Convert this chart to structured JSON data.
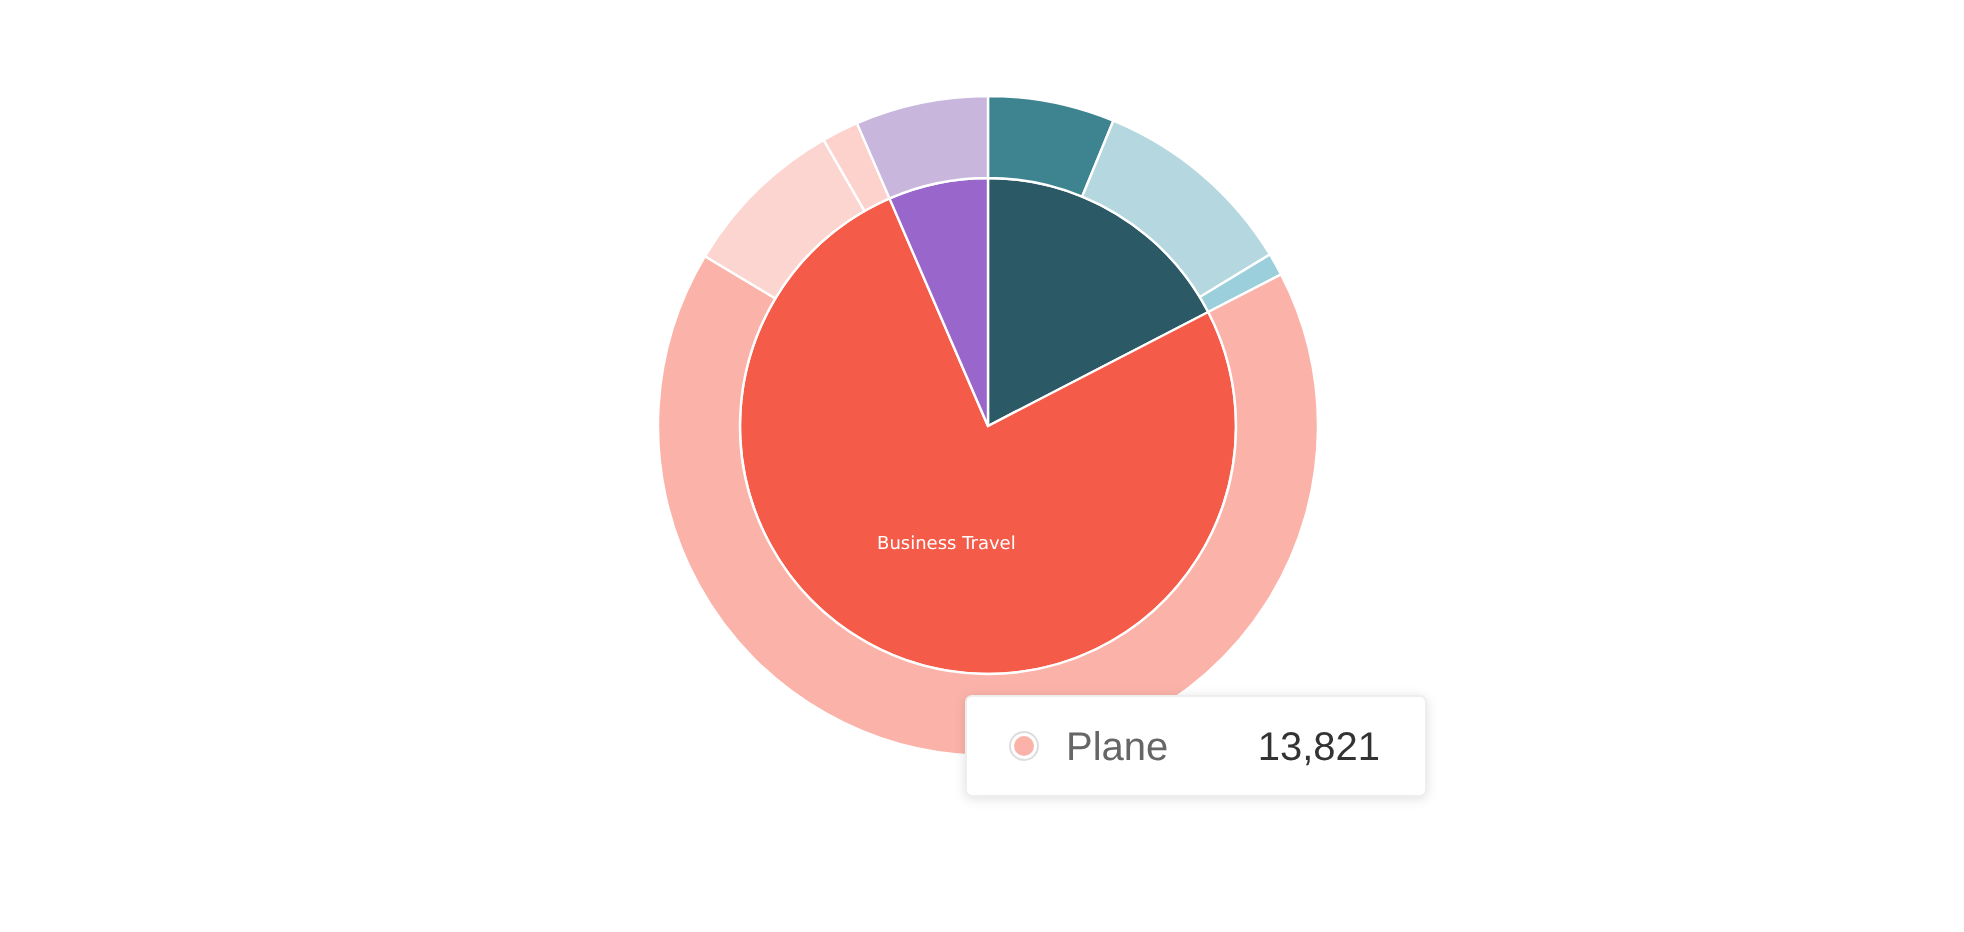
{
  "chart_data": [
    {
      "type": "pie",
      "categories": [
        null,
        "Business Travel",
        null
      ],
      "values": [
        17.4,
        76.1,
        6.5
      ],
      "colors": [
        "#2b5a66",
        "#f45b49",
        "#9966cc"
      ]
    },
    {
      "type": "donut",
      "categories": [
        null,
        null,
        null,
        null,
        null,
        null,
        null
      ],
      "values": [
        6.2,
        10.1,
        1.1,
        66.2,
        8.1,
        1.8,
        6.5
      ],
      "colors": [
        "#3d8490",
        "#b5d8e0",
        "#9bcfdc",
        "#fbb3a9",
        "#fcd5d0",
        "#fdd1cc",
        "#c8b6dd"
      ],
      "annotations": [
        "Plane",
        "13,821"
      ]
    }
  ]
}
